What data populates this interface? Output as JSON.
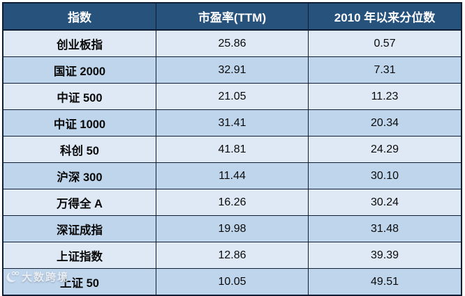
{
  "table": {
    "columns": [
      "指数",
      "市盈率(TTM)",
      "2010 年以来分位数"
    ],
    "rows": [
      [
        "创业板指",
        "25.86",
        "0.57"
      ],
      [
        "国证 2000",
        "32.91",
        "7.31"
      ],
      [
        "中证 500",
        "21.05",
        "11.23"
      ],
      [
        "中证 1000",
        "31.41",
        "20.34"
      ],
      [
        "科创 50",
        "41.81",
        "24.29"
      ],
      [
        "沪深 300",
        "11.44",
        "30.10"
      ],
      [
        "万得全 A",
        "16.26",
        "30.24"
      ],
      [
        "深证成指",
        "19.98",
        "31.48"
      ],
      [
        "上证指数",
        "12.86",
        "39.39"
      ],
      [
        "上证 50",
        "10.05",
        "49.51"
      ]
    ]
  },
  "watermark": {
    "text": "大数跨境"
  },
  "colors": {
    "header_bg": "#26527C",
    "row_light": "#DFE9F5",
    "row_dark": "#BED5EC",
    "border": "#0F1E33",
    "header_text": "#FFFFFF",
    "cell_text": "#0A0A0A"
  },
  "chart_data": {
    "type": "table",
    "title": "",
    "columns": [
      "指数",
      "市盈率(TTM)",
      "2010 年以来分位数"
    ],
    "rows": [
      [
        "创业板指",
        25.86,
        0.57
      ],
      [
        "国证 2000",
        32.91,
        7.31
      ],
      [
        "中证 500",
        21.05,
        11.23
      ],
      [
        "中证 1000",
        31.41,
        20.34
      ],
      [
        "科创 50",
        41.81,
        24.29
      ],
      [
        "沪深 300",
        11.44,
        30.1
      ],
      [
        "万得全 A",
        16.26,
        30.24
      ],
      [
        "深证成指",
        19.98,
        31.48
      ],
      [
        "上证指数",
        12.86,
        39.39
      ],
      [
        "上证 50",
        10.05,
        49.51
      ]
    ]
  }
}
